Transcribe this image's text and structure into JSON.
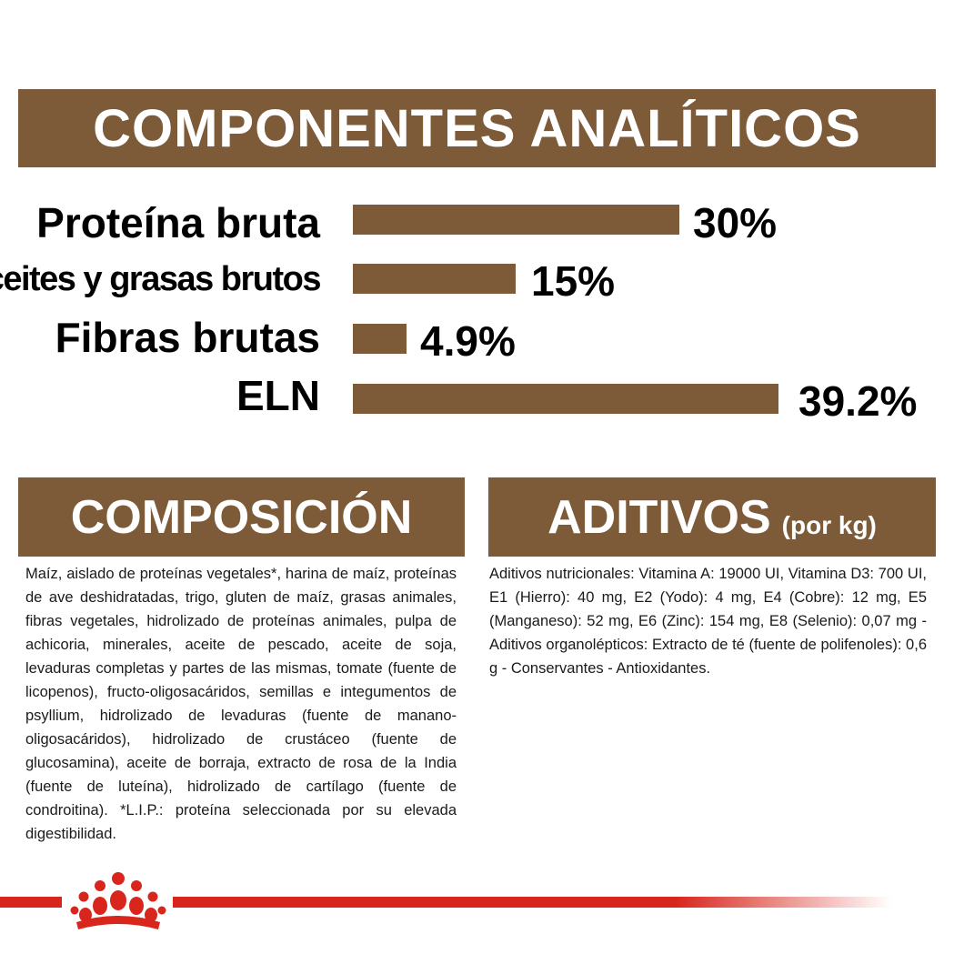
{
  "analytics": {
    "title": "COMPONENTES ANALÍTICOS",
    "rows": [
      {
        "label": "Proteína bruta",
        "value": 30,
        "value_label": "30%"
      },
      {
        "label": "Aceites y grasas brutos",
        "value": 15,
        "value_label": "15%"
      },
      {
        "label": "Fibras brutas",
        "value": 4.9,
        "value_label": "4.9%"
      },
      {
        "label": "ELN",
        "value": 39.2,
        "value_label": "39.2%"
      }
    ]
  },
  "composition": {
    "title": "COMPOSICIÓN",
    "text": "Maíz, aislado de proteínas vegetales*, harina de maíz, proteínas de ave deshidratadas, trigo, gluten de maíz, grasas animales, fibras vegetales, hidrolizado de proteínas animales, pulpa de achicoria, minerales, aceite de pescado, aceite de soja, levaduras completas y partes de las mismas, tomate (fuente de licopenos), fructo-oligosacáridos, semillas e integumentos de psyllium, hidrolizado de levaduras (fuente de manano-oligosacáridos), hidrolizado de crustáceo (fuente de glucosamina), aceite de borraja, extracto de rosa de la India (fuente de luteína), hidrolizado de cartílago (fuente de condroitina). *L.I.P.: proteína seleccionada por su elevada digestibilidad."
  },
  "additives": {
    "title": "ADITIVOS",
    "subtitle": "(por kg)",
    "text": "Aditivos nutricionales: Vitamina A: 19000 UI, Vitamina D3: 700 UI, E1 (Hierro): 40 mg, E2 (Yodo): 4 mg, E4 (Cobre): 12 mg, E5 (Manganeso): 52 mg, E6 (Zinc): 154 mg, E8 (Selenio): 0,07 mg - Aditivos organolépticos: Extracto de té (fuente de polifenoles): 0,6 g - Conservantes - Antioxidantes."
  },
  "colors": {
    "brown": "#7d5a38",
    "brand_red": "#d8261c"
  },
  "icons": {
    "brand": "royal-canin-crown-icon"
  }
}
